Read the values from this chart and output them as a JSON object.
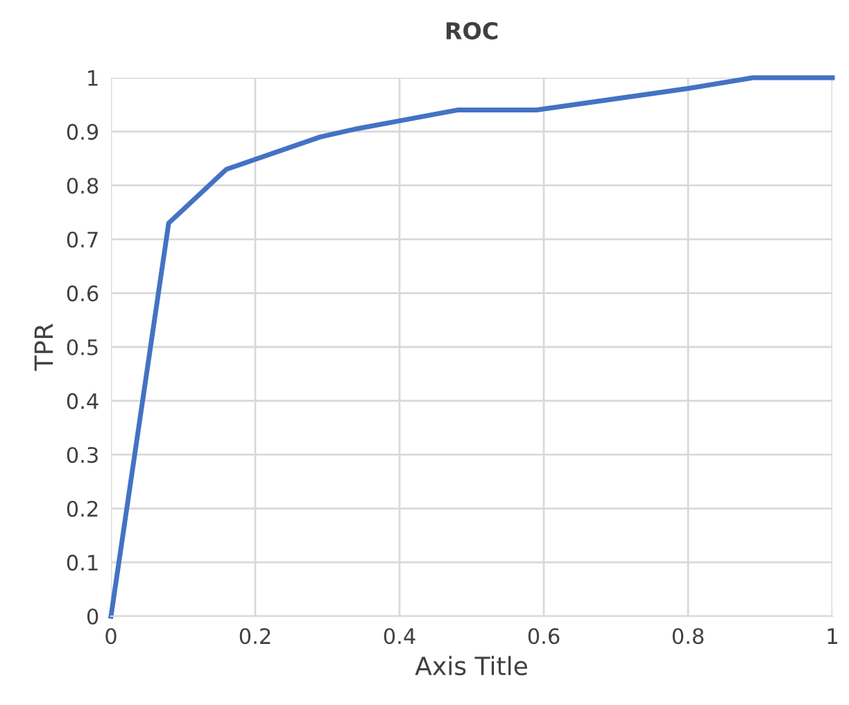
{
  "chart_data": {
    "type": "line",
    "title": "ROC",
    "xlabel": "Axis Title",
    "ylabel": "TPR",
    "x": [
      0,
      0.08,
      0.16,
      0.29,
      0.34,
      0.4,
      0.48,
      0.59,
      0.8,
      0.89,
      1
    ],
    "series": [
      {
        "color": "#4472c4",
        "values": [
          0,
          0.73,
          0.83,
          0.89,
          0.905,
          0.92,
          0.94,
          0.94,
          0.98,
          1,
          1
        ]
      }
    ],
    "xlim": [
      0,
      1
    ],
    "ylim": [
      0,
      1
    ],
    "xticks": [
      0,
      0.2,
      0.4,
      0.6,
      0.8,
      1
    ],
    "yticks": [
      0,
      0.1,
      0.2,
      0.3,
      0.4,
      0.5,
      0.6,
      0.7,
      0.8,
      0.9,
      1
    ],
    "grid": true,
    "marker": "none",
    "line_style": "solid",
    "legend": false
  }
}
